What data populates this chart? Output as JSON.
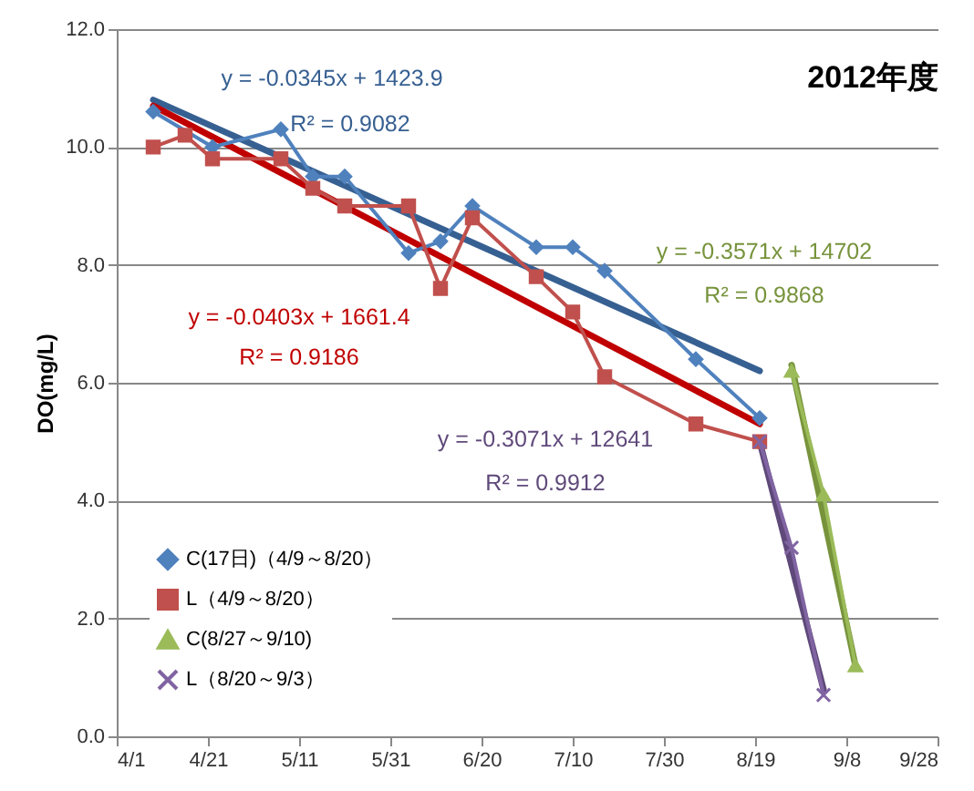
{
  "chart_data": {
    "type": "line",
    "title": "2012年度",
    "ylabel": "DO(mg/L)",
    "xlim": [
      "--04-01",
      "--09-28"
    ],
    "xticks": [
      {
        "value": "--04-01",
        "label": "4/1"
      },
      {
        "value": "--04-21",
        "label": "4/21"
      },
      {
        "value": "--05-11",
        "label": "5/11"
      },
      {
        "value": "--05-31",
        "label": "5/31"
      },
      {
        "value": "--06-20",
        "label": "6/20"
      },
      {
        "value": "--07-10",
        "label": "7/10"
      },
      {
        "value": "--07-30",
        "label": "7/30"
      },
      {
        "value": "--08-19",
        "label": "8/19"
      },
      {
        "value": "--09-08",
        "label": "9/8"
      },
      {
        "value": "--09-28",
        "label": "9/28"
      }
    ],
    "ylim": [
      0,
      12
    ],
    "yticks": [
      {
        "value": 0,
        "label": "0.0"
      },
      {
        "value": 2,
        "label": "2.0"
      },
      {
        "value": 4,
        "label": "4.0"
      },
      {
        "value": 6,
        "label": "6.0"
      },
      {
        "value": 8,
        "label": "8.0"
      },
      {
        "value": 10,
        "label": "10.0"
      },
      {
        "value": 12,
        "label": "12.0"
      }
    ],
    "grid": "y",
    "legend": "bottom left",
    "series": [
      {
        "name": "C(17日)（4/9～8/20）",
        "type": "line",
        "marker": "diamond",
        "color": "#4f81bd",
        "x": [
          "--04-09",
          "--04-22",
          "--05-07",
          "--05-14",
          "--05-21",
          "--06-04",
          "--06-11",
          "--06-18",
          "--07-02",
          "--07-10",
          "--07-17",
          "--08-06",
          "--08-20"
        ],
        "values": [
          10.6,
          10.0,
          10.3,
          9.5,
          9.5,
          8.2,
          8.4,
          9.0,
          8.3,
          8.3,
          7.9,
          6.4,
          5.4
        ]
      },
      {
        "name": "L（4/9～8/20）",
        "type": "line",
        "marker": "square",
        "color": "#c0504d",
        "x": [
          "--04-09",
          "--04-16",
          "--04-22",
          "--05-07",
          "--05-14",
          "--05-21",
          "--06-04",
          "--06-11",
          "--06-18",
          "--07-02",
          "--07-10",
          "--07-17",
          "--08-06",
          "--08-20"
        ],
        "values": [
          10.0,
          10.2,
          9.8,
          9.8,
          9.3,
          9.0,
          9.0,
          7.6,
          8.8,
          7.8,
          7.2,
          6.1,
          5.3,
          5.0
        ]
      },
      {
        "name": "C(8/27～9/10)",
        "type": "line",
        "marker": "triangle",
        "color": "#9bbb59",
        "x": [
          "--08-27",
          "--09-03",
          "--09-10"
        ],
        "values": [
          6.2,
          4.1,
          1.2
        ]
      },
      {
        "name": "L（8/20～9/3）",
        "type": "line",
        "marker": "cross",
        "color": "#8064a2",
        "x": [
          "--08-20",
          "--08-27",
          "--09-03"
        ],
        "values": [
          5.0,
          3.2,
          0.7
        ]
      },
      {
        "type": "line",
        "marker": "none",
        "color": "#376092",
        "x": [
          "--04-09",
          "--08-20"
        ],
        "values": [
          10.8,
          6.2
        ]
      },
      {
        "type": "line",
        "marker": "none",
        "color": "#c00000",
        "x": [
          "--04-09",
          "--08-20"
        ],
        "values": [
          10.7,
          5.3
        ]
      },
      {
        "type": "line",
        "marker": "none",
        "color": "#77933c",
        "x": [
          "--08-27",
          "--09-10"
        ],
        "values": [
          6.3,
          1.2
        ]
      },
      {
        "type": "line",
        "marker": "none",
        "color": "#5f497a",
        "x": [
          "--08-20",
          "--09-03"
        ],
        "values": [
          5.0,
          0.8
        ]
      }
    ],
    "annotations": [
      "y = -0.0345x + 1423.9",
      "R² = 0.9082",
      "y = -0.0403x + 1661.4",
      "R² = 0.9186",
      "y = -0.3571x + 14702",
      "R² = 0.9868",
      "y = -0.3071x + 12641",
      "R² = 0.9912"
    ]
  }
}
